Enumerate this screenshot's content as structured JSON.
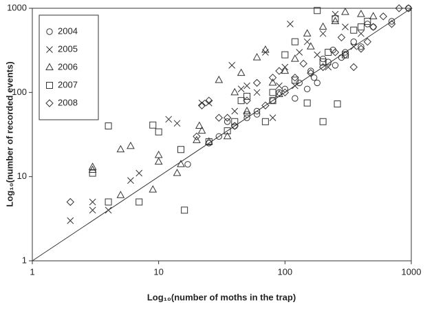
{
  "chart_data": {
    "type": "scatter",
    "x_label": "Log₁₀(number of moths in the trap)",
    "y_label": "Log₁₀(number of recorded events)",
    "log_x": true,
    "log_y": true,
    "grid": false,
    "identity_line": true,
    "legend": "upper left",
    "xlim": [
      1,
      1000
    ],
    "ylim": [
      1,
      1000
    ],
    "xticks": [
      1,
      10,
      100,
      1000
    ],
    "yticks": [
      1,
      10,
      100,
      1000
    ],
    "series": [
      {
        "name": "2004",
        "marker": "circle",
        "color": "#333333",
        "x": [
          17,
          25,
          30,
          40,
          50,
          50,
          60,
          80,
          90,
          100,
          120,
          150,
          160,
          180,
          200,
          220,
          250,
          280,
          300,
          350,
          400,
          450,
          500,
          700,
          950,
          60,
          35,
          130,
          170,
          240
        ],
        "values": [
          14,
          25,
          30,
          40,
          55,
          50,
          55,
          80,
          100,
          110,
          85,
          110,
          180,
          130,
          250,
          230,
          210,
          260,
          300,
          400,
          350,
          650,
          600,
          700,
          1000,
          60,
          45,
          130,
          150,
          320
        ]
      },
      {
        "name": "2005",
        "marker": "x",
        "color": "#333333",
        "x": [
          2,
          3,
          3,
          4,
          6,
          7,
          12,
          14,
          22,
          25,
          38,
          40,
          50,
          60,
          70,
          80,
          90,
          100,
          110,
          120,
          150,
          180,
          200,
          250,
          300,
          400,
          45,
          130,
          220,
          350
        ],
        "values": [
          3,
          4,
          5,
          4,
          9,
          11,
          48,
          43,
          75,
          75,
          210,
          60,
          120,
          100,
          300,
          50,
          120,
          200,
          650,
          120,
          400,
          280,
          500,
          850,
          600,
          500,
          110,
          300,
          200,
          350
        ]
      },
      {
        "name": "2006",
        "marker": "triangle",
        "color": "#333333",
        "x": [
          3,
          3,
          5,
          5,
          6,
          9,
          10,
          10,
          14,
          15,
          20,
          21,
          22,
          25,
          30,
          35,
          40,
          45,
          50,
          60,
          70,
          80,
          100,
          120,
          150,
          200,
          250,
          300,
          400,
          500,
          90,
          160
        ],
        "values": [
          13,
          12,
          6,
          21,
          23,
          7,
          18,
          15,
          11,
          14,
          27,
          40,
          35,
          26,
          140,
          30,
          100,
          170,
          60,
          260,
          320,
          130,
          180,
          250,
          500,
          600,
          700,
          900,
          850,
          800,
          95,
          350
        ]
      },
      {
        "name": "2007",
        "marker": "square",
        "color": "#333333",
        "x": [
          3,
          4,
          4,
          7,
          9,
          10,
          15,
          16,
          25,
          35,
          40,
          45,
          50,
          70,
          80,
          80,
          100,
          120,
          150,
          180,
          200,
          220,
          250,
          260,
          300,
          350,
          400,
          450,
          120,
          200
        ],
        "values": [
          11,
          5,
          40,
          5,
          41,
          34,
          21,
          4,
          26,
          35,
          45,
          80,
          90,
          45,
          80,
          100,
          280,
          140,
          75,
          940,
          45,
          300,
          750,
          73,
          280,
          550,
          600,
          700,
          400,
          230
        ]
      },
      {
        "name": "2008",
        "marker": "diamond",
        "color": "#333333",
        "x": [
          2,
          20,
          22,
          25,
          30,
          35,
          40,
          50,
          60,
          70,
          80,
          90,
          100,
          120,
          140,
          160,
          200,
          250,
          300,
          350,
          400,
          450,
          500,
          600,
          700,
          800,
          950,
          280
        ],
        "values": [
          5,
          30,
          70,
          80,
          50,
          50,
          40,
          80,
          130,
          70,
          150,
          180,
          100,
          150,
          220,
          170,
          200,
          300,
          280,
          200,
          330,
          400,
          600,
          800,
          650,
          1000,
          1000,
          450
        ]
      }
    ]
  }
}
